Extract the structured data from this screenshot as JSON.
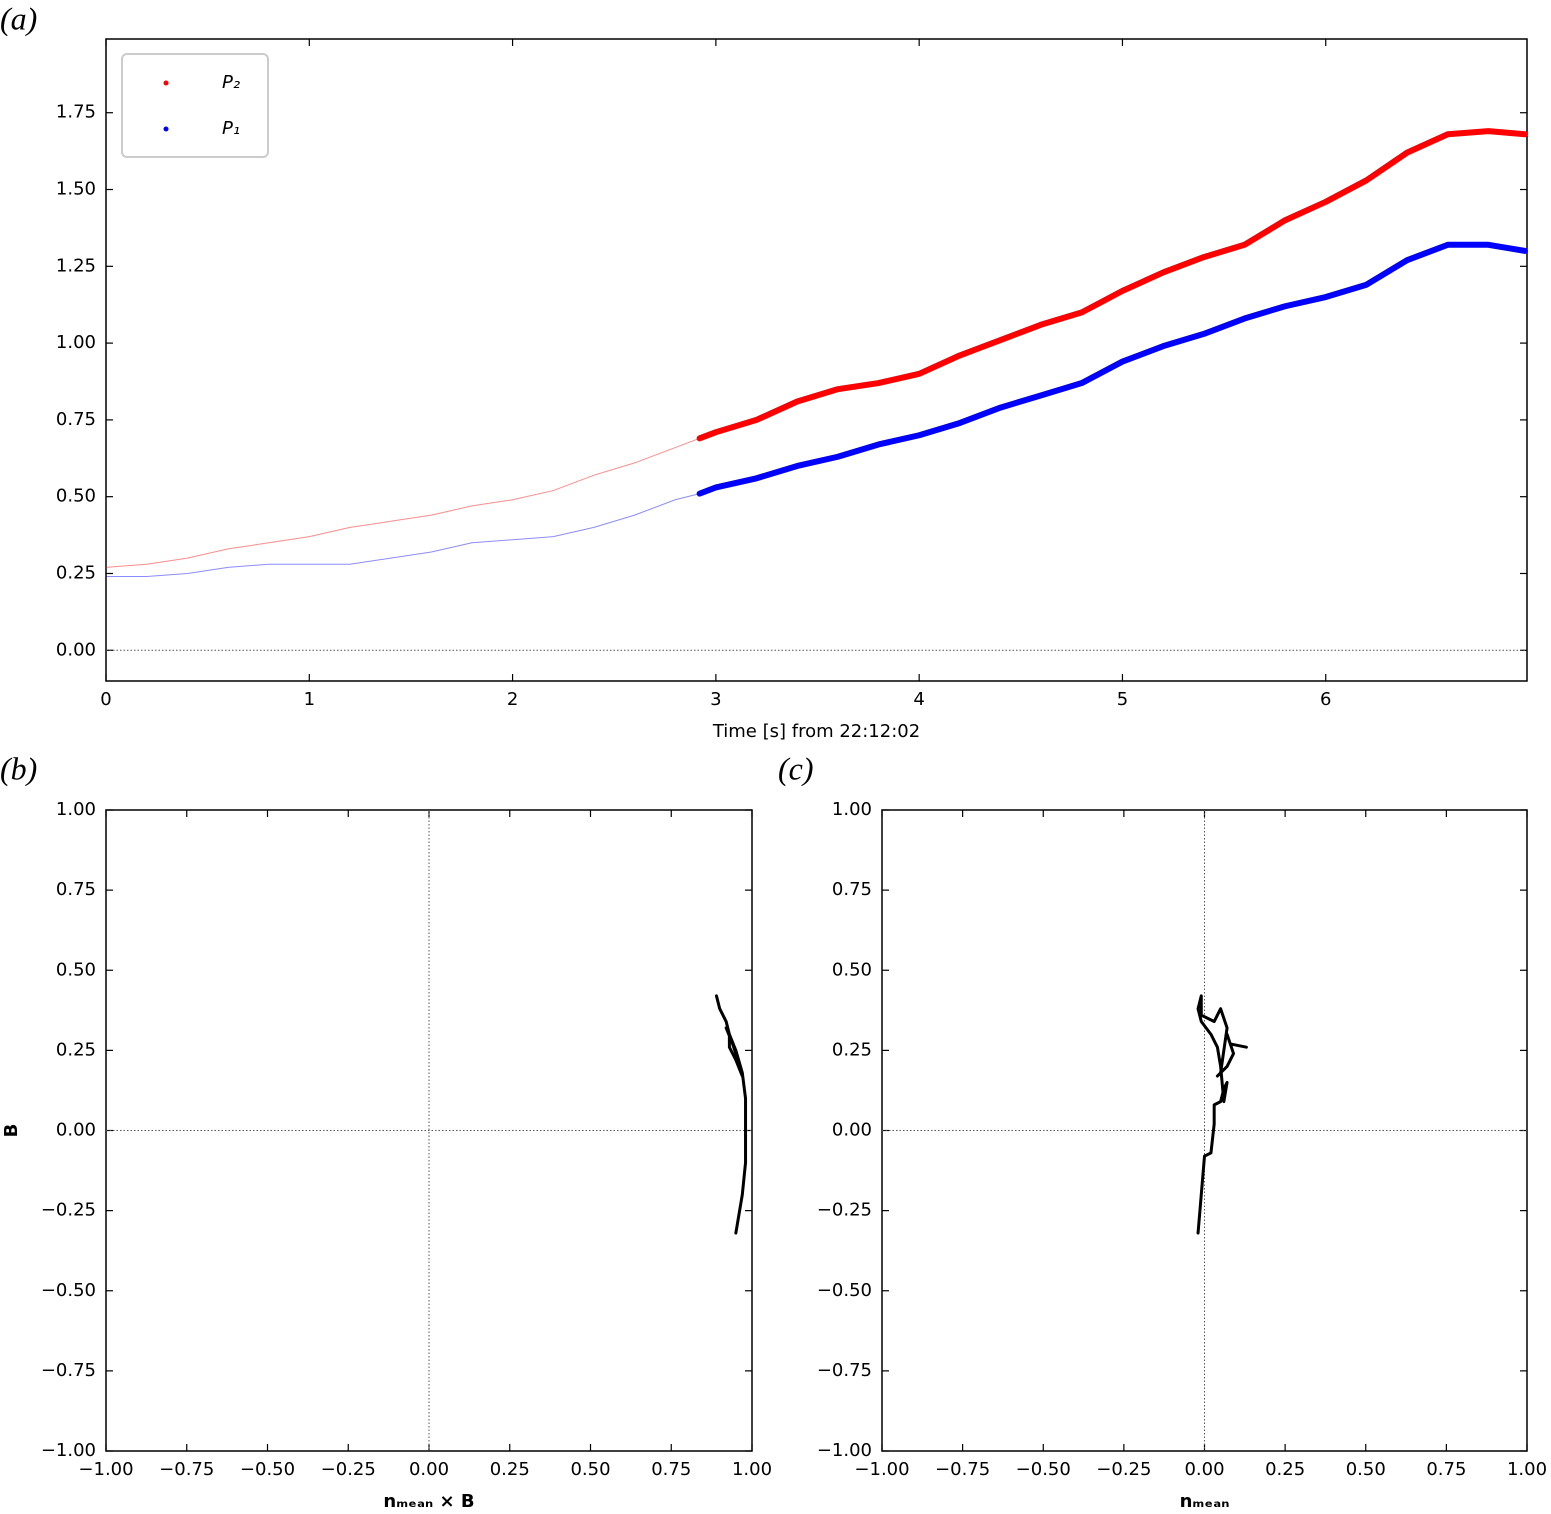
{
  "chart_data": [
    {
      "type": "line",
      "panel_label": "(a)",
      "xlabel": "Time [s] from 22:12:02",
      "xlim": [
        0,
        6.99
      ],
      "ylim": [
        -0.1,
        1.99
      ],
      "xticks": [
        0,
        1,
        2,
        3,
        4,
        5,
        6
      ],
      "yticks": [
        {
          "value": 0,
          "label": "0.00"
        },
        {
          "value": 0.25,
          "label": "0.25"
        },
        {
          "value": 0.5,
          "label": "0.50"
        },
        {
          "value": 0.75,
          "label": "0.75"
        },
        {
          "value": 1,
          "label": "1.00"
        },
        {
          "value": 1.25,
          "label": "1.25"
        },
        {
          "value": 1.5,
          "label": "1.50"
        },
        {
          "value": 1.75,
          "label": "1.75"
        }
      ],
      "hline": 0,
      "emphasis_from": 2.92,
      "legend": "upper left",
      "x": [
        0,
        0.2,
        0.4,
        0.6,
        0.8,
        1.0,
        1.2,
        1.4,
        1.6,
        1.8,
        2.0,
        2.2,
        2.4,
        2.6,
        2.8,
        2.92,
        3.0,
        3.2,
        3.4,
        3.6,
        3.8,
        4.0,
        4.2,
        4.4,
        4.6,
        4.8,
        5.0,
        5.2,
        5.4,
        5.6,
        5.8,
        6.0,
        6.2,
        6.4,
        6.6,
        6.8,
        6.98
      ],
      "series": [
        {
          "name": "P₂",
          "color": "#ff0000",
          "values": [
            0.27,
            0.28,
            0.3,
            0.33,
            0.35,
            0.37,
            0.4,
            0.42,
            0.44,
            0.47,
            0.49,
            0.52,
            0.57,
            0.61,
            0.66,
            0.69,
            0.71,
            0.75,
            0.81,
            0.85,
            0.87,
            0.9,
            0.96,
            1.01,
            1.06,
            1.1,
            1.17,
            1.23,
            1.28,
            1.32,
            1.4,
            1.46,
            1.53,
            1.62,
            1.68,
            1.69,
            1.68
          ]
        },
        {
          "name": "P₁",
          "color": "#0000ff",
          "values": [
            0.24,
            0.24,
            0.25,
            0.27,
            0.28,
            0.28,
            0.28,
            0.3,
            0.32,
            0.35,
            0.36,
            0.37,
            0.4,
            0.44,
            0.49,
            0.51,
            0.53,
            0.56,
            0.6,
            0.63,
            0.67,
            0.7,
            0.74,
            0.79,
            0.83,
            0.87,
            0.94,
            0.99,
            1.03,
            1.08,
            1.12,
            1.15,
            1.19,
            1.27,
            1.32,
            1.32,
            1.3
          ]
        }
      ]
    },
    {
      "type": "trajectory",
      "panel_label": "(b)",
      "xlabel": "nₘₑₐₙ × B",
      "ylabel": "B",
      "xlim": [
        -1,
        1
      ],
      "ylim": [
        -1,
        1
      ],
      "xticks": [
        {
          "value": -1,
          "label": "−1.00"
        },
        {
          "value": -0.75,
          "label": "−0.75"
        },
        {
          "value": -0.5,
          "label": "−0.50"
        },
        {
          "value": -0.25,
          "label": "−0.25"
        },
        {
          "value": 0,
          "label": "0.00"
        },
        {
          "value": 0.25,
          "label": "0.25"
        },
        {
          "value": 0.5,
          "label": "0.50"
        },
        {
          "value": 0.75,
          "label": "0.75"
        },
        {
          "value": 1,
          "label": "1.00"
        }
      ],
      "yticks": [
        {
          "value": -1,
          "label": "−1.00"
        },
        {
          "value": -0.75,
          "label": "−0.75"
        },
        {
          "value": -0.5,
          "label": "−0.50"
        },
        {
          "value": -0.25,
          "label": "−0.25"
        },
        {
          "value": 0,
          "label": "0.00"
        },
        {
          "value": 0.25,
          "label": "0.25"
        },
        {
          "value": 0.5,
          "label": "0.50"
        },
        {
          "value": 0.75,
          "label": "0.75"
        },
        {
          "value": 1,
          "label": "1.00"
        }
      ],
      "hline": 0,
      "vline": 0,
      "series": [
        {
          "color": "#000000",
          "x": [
            0.89,
            0.9,
            0.92,
            0.93,
            0.93,
            0.95,
            0.97,
            0.96,
            0.94,
            0.92,
            0.93,
            0.95,
            0.97,
            0.98,
            0.98,
            0.98,
            0.98,
            0.97,
            0.95
          ],
          "values": [
            0.42,
            0.38,
            0.34,
            0.3,
            0.26,
            0.22,
            0.17,
            0.21,
            0.27,
            0.32,
            0.3,
            0.25,
            0.18,
            0.1,
            0.02,
            -0.05,
            -0.1,
            -0.2,
            -0.32
          ]
        }
      ]
    },
    {
      "type": "trajectory",
      "panel_label": "(c)",
      "xlabel": "nₘₑₐₙ",
      "xlim": [
        -1,
        1
      ],
      "ylim": [
        -1,
        1
      ],
      "xticks": [
        {
          "value": -1,
          "label": "−1.00"
        },
        {
          "value": -0.75,
          "label": "−0.75"
        },
        {
          "value": -0.5,
          "label": "−0.50"
        },
        {
          "value": -0.25,
          "label": "−0.25"
        },
        {
          "value": 0,
          "label": "0.00"
        },
        {
          "value": 0.25,
          "label": "0.25"
        },
        {
          "value": 0.5,
          "label": "0.50"
        },
        {
          "value": 0.75,
          "label": "0.75"
        },
        {
          "value": 1,
          "label": "1.00"
        }
      ],
      "yticks": [
        {
          "value": -1,
          "label": "−1.00"
        },
        {
          "value": -0.75,
          "label": "−0.75"
        },
        {
          "value": -0.5,
          "label": "−0.50"
        },
        {
          "value": -0.25,
          "label": "−0.25"
        },
        {
          "value": 0,
          "label": "0.00"
        },
        {
          "value": 0.25,
          "label": "0.25"
        },
        {
          "value": 0.5,
          "label": "0.50"
        },
        {
          "value": 0.75,
          "label": "0.75"
        },
        {
          "value": 1,
          "label": "1.00"
        }
      ],
      "hline": 0,
      "vline": 0,
      "series": [
        {
          "color": "#000000",
          "x": [
            -0.02,
            -0.01,
            0.0,
            0.02,
            0.03,
            0.03,
            0.05,
            0.06,
            0.07,
            0.06,
            0.05,
            0.04,
            0.02,
            -0.01,
            -0.02,
            -0.01,
            -0.01,
            0.03,
            0.05,
            0.07,
            0.05,
            0.04,
            0.07,
            0.09,
            0.07,
            0.08,
            0.13
          ],
          "values": [
            -0.32,
            -0.2,
            -0.08,
            -0.07,
            0.02,
            0.08,
            0.09,
            0.13,
            0.15,
            0.09,
            0.2,
            0.26,
            0.3,
            0.34,
            0.38,
            0.42,
            0.36,
            0.34,
            0.38,
            0.32,
            0.18,
            0.17,
            0.2,
            0.24,
            0.3,
            0.27,
            0.26
          ]
        }
      ]
    }
  ]
}
